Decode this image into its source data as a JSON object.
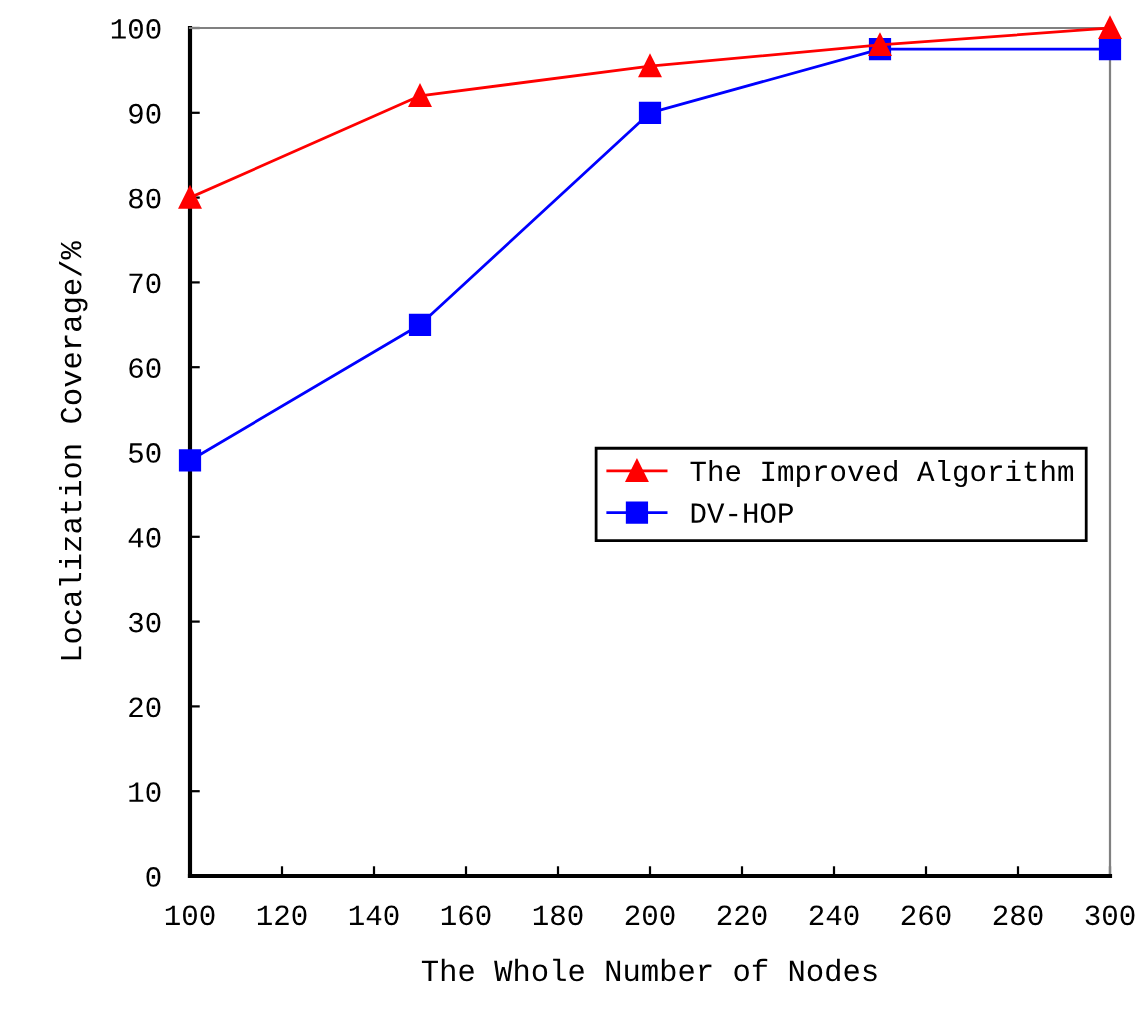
{
  "chart_data": {
    "type": "line",
    "xlabel": "The Whole Number of Nodes",
    "ylabel": "Localization Coverage/%",
    "x": [
      100,
      150,
      200,
      250,
      300
    ],
    "series": [
      {
        "name": "The Improved Algorithm",
        "color": "#ff0000",
        "marker": "triangle",
        "values": [
          80,
          92,
          95.5,
          98,
          100
        ]
      },
      {
        "name": "DV-HOP",
        "color": "#0000ff",
        "marker": "square",
        "values": [
          49,
          65,
          90,
          97.5,
          97.5
        ]
      }
    ],
    "xlim": [
      100,
      300
    ],
    "xticks": [
      100,
      120,
      140,
      160,
      180,
      200,
      220,
      240,
      260,
      280,
      300
    ],
    "ylim": [
      0,
      100
    ],
    "yticks": [
      0,
      10,
      20,
      30,
      40,
      50,
      60,
      70,
      80,
      90,
      100
    ],
    "grid": false,
    "legend": "right",
    "line_style": "solid"
  }
}
